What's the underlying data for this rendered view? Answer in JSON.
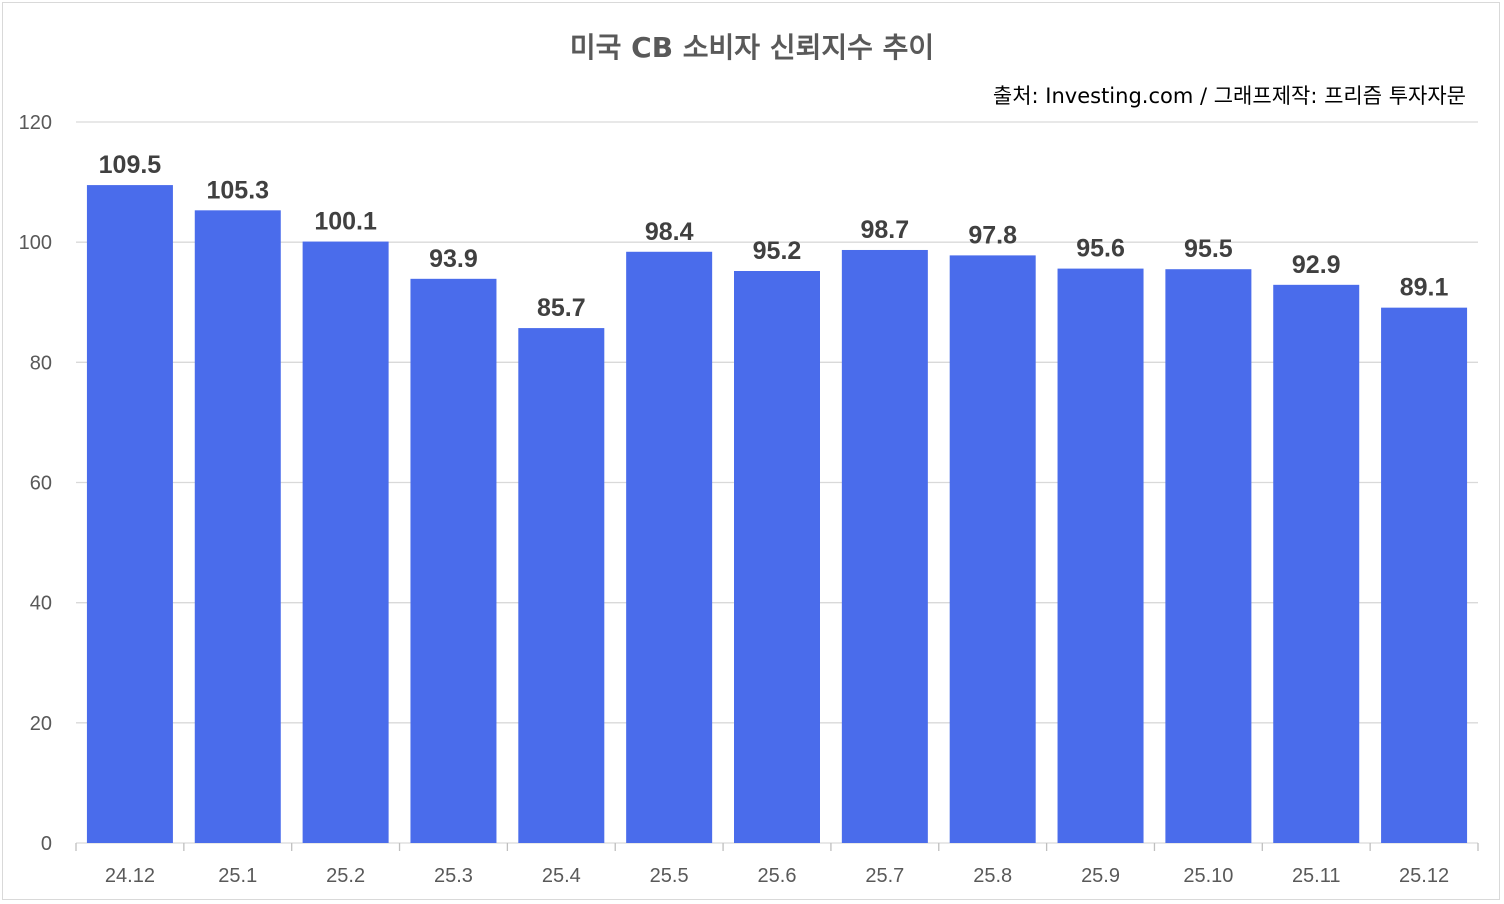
{
  "chart_data": {
    "type": "bar",
    "title": "미국 CB 소비자 신뢰지수 추이",
    "subtitle": "출처: Investing.com / 그래프제작: 프리즘 투자자문",
    "categories": [
      "24.12",
      "25.1",
      "25.2",
      "25.3",
      "25.4",
      "25.5",
      "25.6",
      "25.7",
      "25.8",
      "25.9",
      "25.10",
      "25.11",
      "25.12"
    ],
    "values": [
      109.5,
      105.3,
      100.1,
      93.9,
      85.7,
      98.4,
      95.2,
      98.7,
      97.8,
      95.6,
      95.5,
      92.9,
      89.1
    ],
    "data_labels": [
      "109.5",
      "105.3",
      "100.1",
      "93.9",
      "85.7",
      "98.4",
      "95.2",
      "98.7",
      "97.8",
      "95.6",
      "95.5",
      "92.9",
      "89.1"
    ],
    "yticks": [
      "0",
      "20",
      "40",
      "60",
      "80",
      "100",
      "120"
    ],
    "ytick_values": [
      0,
      20,
      40,
      60,
      80,
      100,
      120
    ],
    "ylim": [
      0,
      120
    ],
    "xlabel": "",
    "ylabel": "",
    "grid": true,
    "legend": "none",
    "bar_color": "#4A6CEB"
  }
}
